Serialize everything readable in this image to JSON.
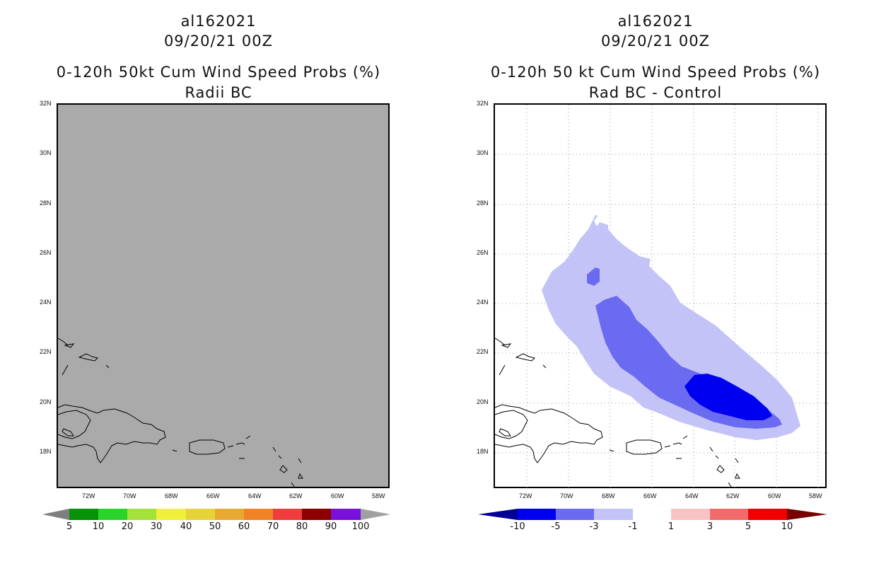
{
  "panels": [
    {
      "storm_id": "al162021",
      "datetime": "09/20/21 00Z",
      "title": "0-120h 50kt Cum Wind Speed Probs (%)",
      "subtitle": "Radii BC",
      "lat_labels": [
        "32N",
        "30N",
        "28N",
        "26N",
        "24N",
        "22N",
        "20N",
        "18N"
      ],
      "lon_labels": [
        "72W",
        "70W",
        "68W",
        "66W",
        "64W",
        "62W",
        "60W",
        "58W"
      ],
      "colorbar": {
        "labels": [
          "5",
          "10",
          "20",
          "30",
          "40",
          "50",
          "60",
          "70",
          "80",
          "90",
          "100"
        ],
        "colors": [
          "#7f7f7f",
          "#089208",
          "#2bd42b",
          "#a2e23a",
          "#f0f03a",
          "#e6d23a",
          "#e6aa32",
          "#f08228",
          "#f03c3c",
          "#8c0000",
          "#7a10dc",
          "#a0a0a0"
        ]
      },
      "background": "#aaaaaa"
    },
    {
      "storm_id": "al162021",
      "datetime": "09/20/21 00Z",
      "title": "0-120h 50 kt Cum Wind Speed Probs (%)",
      "subtitle": "Rad BC - Control",
      "lat_labels": [
        "32N",
        "30N",
        "28N",
        "26N",
        "24N",
        "22N",
        "20N",
        "18N"
      ],
      "lon_labels": [
        "72W",
        "70W",
        "68W",
        "66W",
        "64W",
        "62W",
        "60W",
        "58W"
      ],
      "colorbar": {
        "labels": [
          "-10",
          "-5",
          "-3",
          "-1",
          "1",
          "3",
          "5",
          "10"
        ],
        "colors": [
          "#000096",
          "#0000f0",
          "#6b6bf2",
          "#c3c3f8",
          "#ffffff",
          "#f8c3c3",
          "#f26b6b",
          "#f00000",
          "#780000"
        ]
      },
      "contour_colors": {
        "light": "#c3c3f8",
        "medium": "#6b6bf2",
        "dark": "#0000f0"
      }
    }
  ]
}
